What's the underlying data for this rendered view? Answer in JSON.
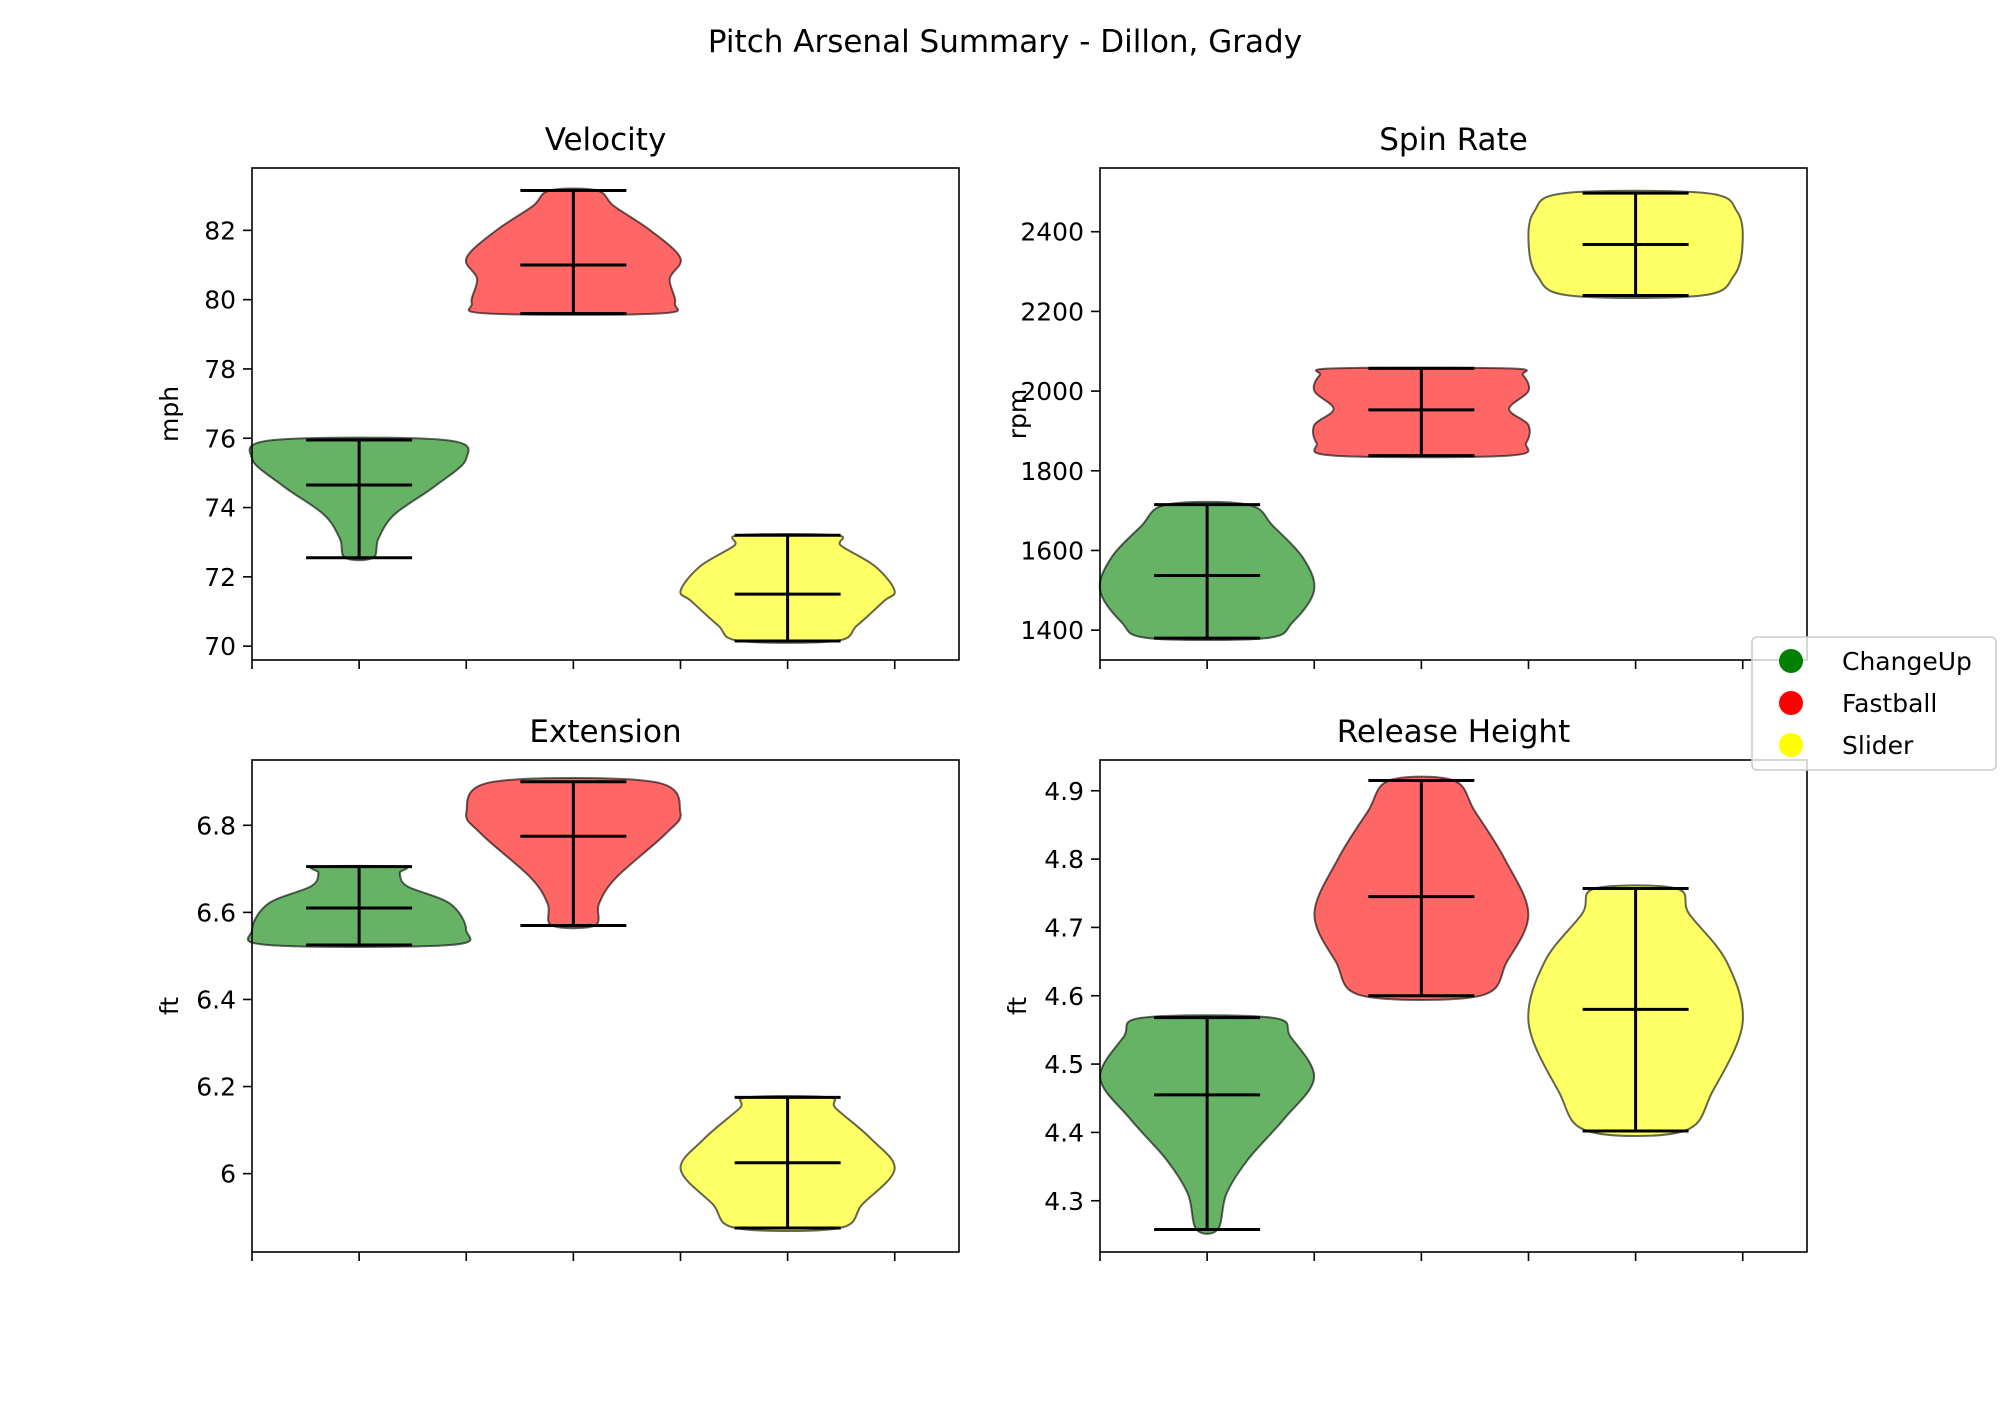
{
  "chart_data": {
    "type": "violin",
    "title": "Pitch Arsenal Summary - Dillon, Grady",
    "legend": {
      "placement": "right",
      "entries": [
        {
          "label": "ChangeUp",
          "color": "#008000"
        },
        {
          "label": "Fastball",
          "color": "#ff0000"
        },
        {
          "label": "Slider",
          "color": "#ffff00"
        }
      ]
    },
    "categories": [
      "ChangeUp",
      "Fastball",
      "Slider"
    ],
    "panels": [
      {
        "title": "Velocity",
        "ylabel": "mph",
        "ylim": [
          69.6,
          83.8
        ],
        "yticks": [
          70,
          72,
          74,
          76,
          78,
          80,
          82
        ],
        "violins": [
          {
            "category": "ChangeUp",
            "min": 72.55,
            "mean": 74.65,
            "max": 75.95,
            "profile": [
              [
                72.55,
                0.13
              ],
              [
                73.1,
                0.18
              ],
              [
                73.8,
                0.33
              ],
              [
                74.6,
                0.7
              ],
              [
                75.4,
                1.0
              ],
              [
                75.95,
                0.8
              ]
            ]
          },
          {
            "category": "Fastball",
            "min": 79.6,
            "mean": 81.0,
            "max": 83.15,
            "profile": [
              [
                79.6,
                0.8
              ],
              [
                79.9,
                0.95
              ],
              [
                80.6,
                0.9
              ],
              [
                81.2,
                1.0
              ],
              [
                82.0,
                0.72
              ],
              [
                82.7,
                0.38
              ],
              [
                83.15,
                0.22
              ]
            ]
          },
          {
            "category": "Slider",
            "min": 70.15,
            "mean": 71.5,
            "max": 73.2,
            "profile": [
              [
                70.15,
                0.45
              ],
              [
                70.6,
                0.65
              ],
              [
                71.3,
                0.9
              ],
              [
                71.6,
                1.0
              ],
              [
                72.3,
                0.82
              ],
              [
                72.9,
                0.5
              ],
              [
                73.2,
                0.45
              ]
            ]
          }
        ]
      },
      {
        "title": "Spin Rate",
        "ylabel": "rpm",
        "ylim": [
          1325,
          2560
        ],
        "yticks": [
          1400,
          1600,
          1800,
          2000,
          2200,
          2400
        ],
        "violins": [
          {
            "category": "ChangeUp",
            "min": 1380,
            "mean": 1537,
            "max": 1715,
            "profile": [
              [
                1380,
                0.55
              ],
              [
                1420,
                0.8
              ],
              [
                1500,
                1.0
              ],
              [
                1580,
                0.9
              ],
              [
                1660,
                0.62
              ],
              [
                1715,
                0.38
              ]
            ]
          },
          {
            "category": "Fastball",
            "min": 1838,
            "mean": 1953,
            "max": 2057,
            "profile": [
              [
                1838,
                0.82
              ],
              [
                1870,
                0.98
              ],
              [
                1915,
                1.0
              ],
              [
                1955,
                0.82
              ],
              [
                2000,
                1.0
              ],
              [
                2040,
                0.95
              ],
              [
                2057,
                0.82
              ]
            ]
          },
          {
            "category": "Slider",
            "min": 2240,
            "mean": 2368,
            "max": 2497,
            "profile": [
              [
                2240,
                0.62
              ],
              [
                2290,
                0.92
              ],
              [
                2370,
                1.0
              ],
              [
                2450,
                0.95
              ],
              [
                2497,
                0.66
              ]
            ]
          }
        ]
      },
      {
        "title": "Extension",
        "ylabel": "ft",
        "ylim": [
          5.82,
          6.95
        ],
        "yticks": [
          6.0,
          6.2,
          6.4,
          6.6,
          6.8
        ],
        "violins": [
          {
            "category": "ChangeUp",
            "min": 6.525,
            "mean": 6.61,
            "max": 6.705,
            "profile": [
              [
                6.525,
                0.85
              ],
              [
                6.56,
                1.0
              ],
              [
                6.62,
                0.85
              ],
              [
                6.66,
                0.45
              ],
              [
                6.69,
                0.38
              ],
              [
                6.705,
                0.4
              ]
            ]
          },
          {
            "category": "Fastball",
            "min": 6.57,
            "mean": 6.775,
            "max": 6.9,
            "profile": [
              [
                6.57,
                0.2
              ],
              [
                6.62,
                0.24
              ],
              [
                6.68,
                0.4
              ],
              [
                6.78,
                0.86
              ],
              [
                6.83,
                1.0
              ],
              [
                6.9,
                0.75
              ]
            ]
          },
          {
            "category": "Slider",
            "min": 5.875,
            "mean": 6.025,
            "max": 6.175,
            "profile": [
              [
                5.875,
                0.48
              ],
              [
                5.93,
                0.7
              ],
              [
                6.01,
                1.0
              ],
              [
                6.08,
                0.78
              ],
              [
                6.15,
                0.45
              ],
              [
                6.175,
                0.38
              ]
            ]
          }
        ]
      },
      {
        "title": "Release Height",
        "ylabel": "ft",
        "ylim": [
          4.225,
          4.945
        ],
        "yticks": [
          4.3,
          4.4,
          4.5,
          4.6,
          4.7,
          4.8,
          4.9
        ],
        "violins": [
          {
            "category": "ChangeUp",
            "min": 4.258,
            "mean": 4.455,
            "max": 4.568,
            "profile": [
              [
                4.258,
                0.1
              ],
              [
                4.31,
                0.18
              ],
              [
                4.36,
                0.38
              ],
              [
                4.42,
                0.72
              ],
              [
                4.48,
                1.0
              ],
              [
                4.54,
                0.78
              ],
              [
                4.568,
                0.6
              ]
            ]
          },
          {
            "category": "Fastball",
            "min": 4.6,
            "mean": 4.745,
            "max": 4.915,
            "profile": [
              [
                4.6,
                0.55
              ],
              [
                4.65,
                0.8
              ],
              [
                4.72,
                1.0
              ],
              [
                4.8,
                0.78
              ],
              [
                4.87,
                0.5
              ],
              [
                4.915,
                0.3
              ]
            ]
          },
          {
            "category": "Slider",
            "min": 4.402,
            "mean": 4.58,
            "max": 4.757,
            "profile": [
              [
                4.402,
                0.45
              ],
              [
                4.46,
                0.72
              ],
              [
                4.56,
                1.0
              ],
              [
                4.65,
                0.85
              ],
              [
                4.72,
                0.5
              ],
              [
                4.757,
                0.38
              ]
            ]
          }
        ]
      }
    ]
  }
}
